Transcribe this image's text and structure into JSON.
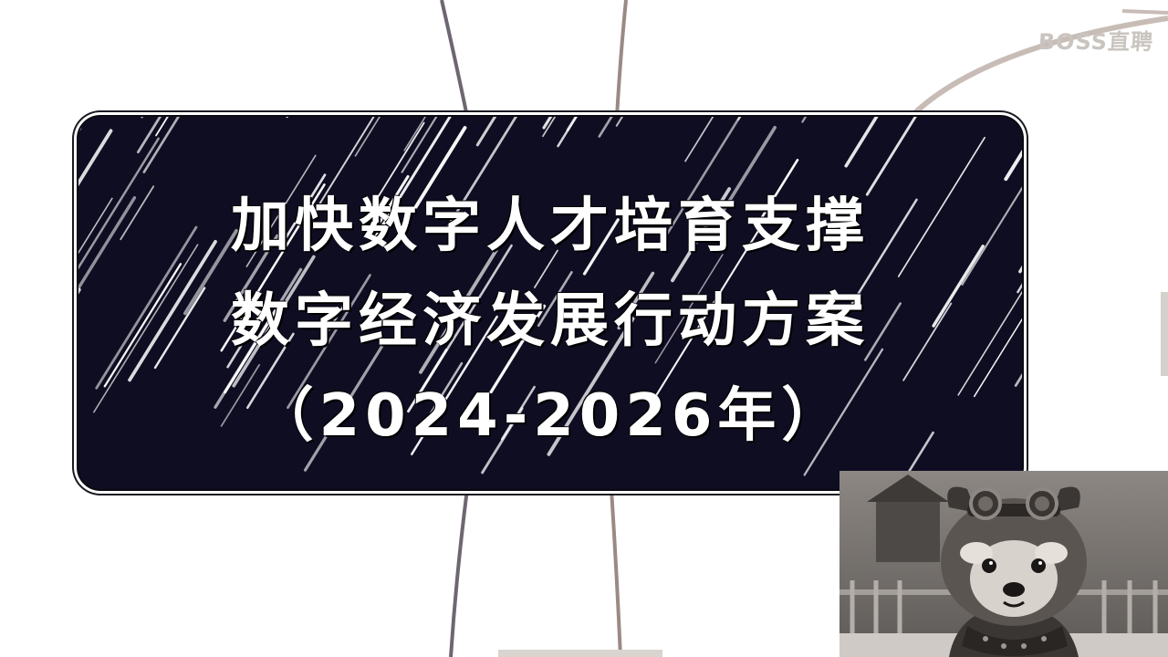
{
  "watermark": {
    "text": "BOSS直聘"
  },
  "title": {
    "line1": "加快数字人才培育支撑",
    "line2": "数字经济发展行动方案",
    "line3": "（2024-2026年）"
  },
  "colors": {
    "card_background": "#0f0d22",
    "title_text": "#ffffff",
    "page_background": "#ffffff",
    "accent_line": "#8a7a74"
  },
  "avatar": {
    "icon": "red-panda-avatar-icon"
  }
}
